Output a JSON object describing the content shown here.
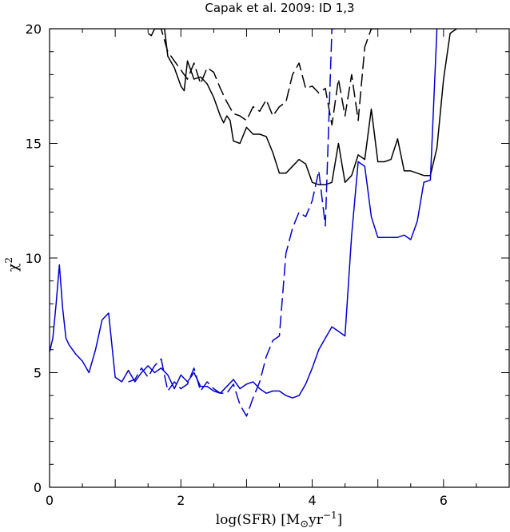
{
  "chart_data": {
    "type": "line",
    "title": "Capak et al. 2009: ID 1,3",
    "xlabel_main": "log(SFR) [M",
    "xlabel_sub": "⊙",
    "xlabel_unit": "yr",
    "xlabel_exp": "−1",
    "xlabel_end": "]",
    "ylabel_main": "χ",
    "ylabel_exp": "2",
    "xlim": [
      0,
      7
    ],
    "ylim": [
      0,
      20
    ],
    "x_ticks": [
      "0",
      "2",
      "4",
      "6"
    ],
    "y_ticks": [
      "0",
      "5",
      "10",
      "15",
      "20"
    ],
    "colors": {
      "black": "#000000",
      "blue": "#0000cc"
    },
    "series": [
      {
        "color": "black",
        "dash": "solid",
        "x": [
          1.5,
          1.55,
          1.6,
          1.65,
          1.7,
          1.75,
          1.8,
          1.9,
          2.0,
          2.05,
          2.1,
          2.2,
          2.3,
          2.4,
          2.5,
          2.6,
          2.65,
          2.7,
          2.75,
          2.8,
          2.9,
          3.0,
          3.1,
          3.2,
          3.3,
          3.4,
          3.5,
          3.6,
          3.7,
          3.8,
          3.9,
          4.0,
          4.1,
          4.2,
          4.3,
          4.4,
          4.5,
          4.6,
          4.7,
          4.8,
          4.9,
          5.0,
          5.1,
          5.2,
          5.3,
          5.4,
          5.5,
          5.6,
          5.7,
          5.8,
          5.9,
          6.0,
          6.1,
          6.2
        ],
        "y": [
          19.8,
          19.7,
          20.0,
          20.0,
          20.0,
          20.0,
          18.8,
          18.3,
          17.5,
          17.3,
          18.6,
          17.8,
          17.9,
          17.6,
          17.0,
          16.2,
          15.9,
          16.2,
          16.0,
          15.1,
          15.0,
          15.7,
          15.4,
          15.4,
          15.3,
          14.6,
          13.7,
          13.7,
          14.0,
          14.3,
          14.1,
          13.3,
          13.2,
          13.2,
          13.3,
          15.0,
          13.3,
          13.6,
          14.5,
          14.3,
          16.5,
          14.2,
          14.2,
          14.3,
          15.2,
          13.8,
          13.8,
          13.7,
          13.6,
          13.6,
          14.8,
          17.8,
          19.8,
          20.0
        ]
      },
      {
        "color": "black",
        "dash": "dashed",
        "x": [
          1.6,
          1.7,
          1.8,
          1.9,
          2.0,
          2.1,
          2.2,
          2.3,
          2.4,
          2.5,
          2.6,
          2.7,
          2.8,
          2.9,
          3.0,
          3.1,
          3.2,
          3.3,
          3.4,
          3.5,
          3.6,
          3.7,
          3.8,
          3.9,
          4.0,
          4.1,
          4.2,
          4.3,
          4.4,
          4.5,
          4.6,
          4.7,
          4.8,
          4.9,
          5.0
        ],
        "y": [
          20.0,
          20.0,
          19.0,
          18.6,
          18.2,
          17.8,
          18.5,
          17.6,
          18.3,
          18.1,
          17.4,
          16.8,
          16.3,
          16.2,
          16.0,
          16.6,
          16.4,
          16.9,
          16.2,
          16.6,
          16.8,
          18.0,
          18.5,
          17.4,
          17.5,
          17.2,
          17.4,
          15.8,
          17.8,
          16.2,
          18.0,
          16.0,
          19.2,
          20.0,
          20.0
        ]
      },
      {
        "color": "blue",
        "dash": "solid",
        "x": [
          0.0,
          0.05,
          0.1,
          0.15,
          0.2,
          0.25,
          0.3,
          0.35,
          0.4,
          0.5,
          0.6,
          0.7,
          0.8,
          0.9,
          1.0,
          1.1,
          1.2,
          1.3,
          1.4,
          1.5,
          1.6,
          1.7,
          1.8,
          1.9,
          2.0,
          2.1,
          2.2,
          2.3,
          2.4,
          2.5,
          2.6,
          2.7,
          2.8,
          2.9,
          3.0,
          3.1,
          3.2,
          3.3,
          3.4,
          3.5,
          3.6,
          3.7,
          3.8,
          3.9,
          4.0,
          4.1,
          4.2,
          4.3,
          4.4,
          4.5,
          4.6,
          4.7,
          4.8,
          4.9,
          5.0,
          5.1,
          5.2,
          5.3,
          5.4,
          5.5,
          5.6,
          5.7,
          5.8,
          5.9
        ],
        "y": [
          5.9,
          6.5,
          8.0,
          9.7,
          7.8,
          6.5,
          6.2,
          6.0,
          5.8,
          5.5,
          5.0,
          6.0,
          7.3,
          7.6,
          4.8,
          4.6,
          5.1,
          4.6,
          5.0,
          5.3,
          5.0,
          5.2,
          4.9,
          4.3,
          4.9,
          4.6,
          5.0,
          4.4,
          4.4,
          4.2,
          4.1,
          4.4,
          4.7,
          4.3,
          4.5,
          4.6,
          4.3,
          4.1,
          4.2,
          4.2,
          4.0,
          3.9,
          4.0,
          4.5,
          5.2,
          6.0,
          6.5,
          7.0,
          6.8,
          6.6,
          11.0,
          14.2,
          14.0,
          11.8,
          10.9,
          10.9,
          10.9,
          10.9,
          11.0,
          10.8,
          11.6,
          13.3,
          13.4,
          20.0
        ]
      },
      {
        "color": "blue",
        "dash": "dashed",
        "x": [
          1.2,
          1.3,
          1.4,
          1.5,
          1.6,
          1.7,
          1.8,
          1.9,
          2.0,
          2.1,
          2.2,
          2.3,
          2.4,
          2.5,
          2.6,
          2.7,
          2.8,
          2.9,
          3.0,
          3.1,
          3.2,
          3.3,
          3.4,
          3.5,
          3.6,
          3.7,
          3.8,
          3.9,
          4.0,
          4.1,
          4.2,
          4.3,
          4.35
        ],
        "y": [
          4.6,
          4.7,
          5.2,
          4.8,
          5.3,
          5.6,
          4.2,
          4.6,
          4.3,
          4.5,
          5.2,
          4.2,
          4.6,
          4.3,
          4.1,
          4.1,
          4.5,
          3.6,
          3.1,
          3.9,
          4.6,
          5.7,
          6.4,
          6.6,
          10.2,
          11.3,
          12.0,
          11.8,
          12.5,
          13.8,
          11.4,
          20.0,
          20.0
        ]
      }
    ]
  }
}
